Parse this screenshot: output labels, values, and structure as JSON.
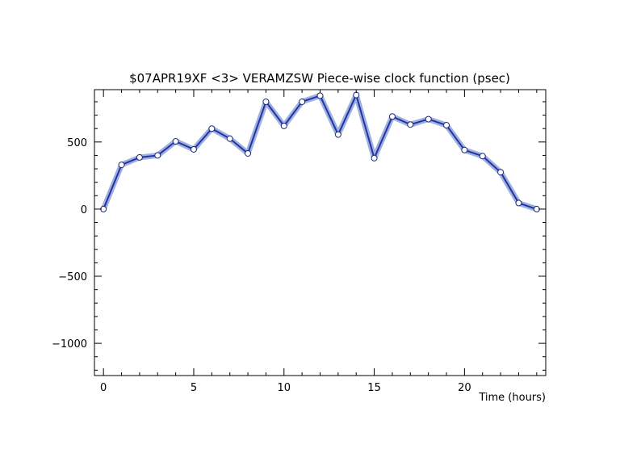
{
  "chart_data": {
    "type": "line",
    "title": "$07APR19XF <3>  VERAMZSW  Piece-wise clock function (psec)",
    "xlabel": "Time (hours)",
    "ylabel": "",
    "xlim": [
      -0.5,
      24.5
    ],
    "ylim": [
      -1240,
      890
    ],
    "x_ticks": [
      0,
      5,
      10,
      15,
      20
    ],
    "y_ticks": [
      -1000,
      -500,
      0,
      500
    ],
    "x_tick_labels": [
      "0",
      "5",
      "10",
      "15",
      "20"
    ],
    "y_tick_labels": [
      "−1000",
      "−500",
      "0",
      "500"
    ],
    "grid": false,
    "line_color": "#2233aa",
    "band_color": "#8fa3d6",
    "marker_fill": "#ffffff",
    "series": [
      {
        "x": [
          0,
          1,
          2,
          3,
          4,
          5,
          6,
          7,
          8,
          9,
          10,
          11,
          12,
          13,
          14,
          15,
          16,
          17,
          18,
          19,
          20,
          21,
          22,
          23,
          24
        ],
        "values": [
          0,
          330,
          385,
          400,
          505,
          445,
          600,
          525,
          415,
          800,
          620,
          800,
          845,
          555,
          850,
          380,
          690,
          630,
          670,
          625,
          440,
          395,
          275,
          45,
          0
        ]
      }
    ]
  }
}
